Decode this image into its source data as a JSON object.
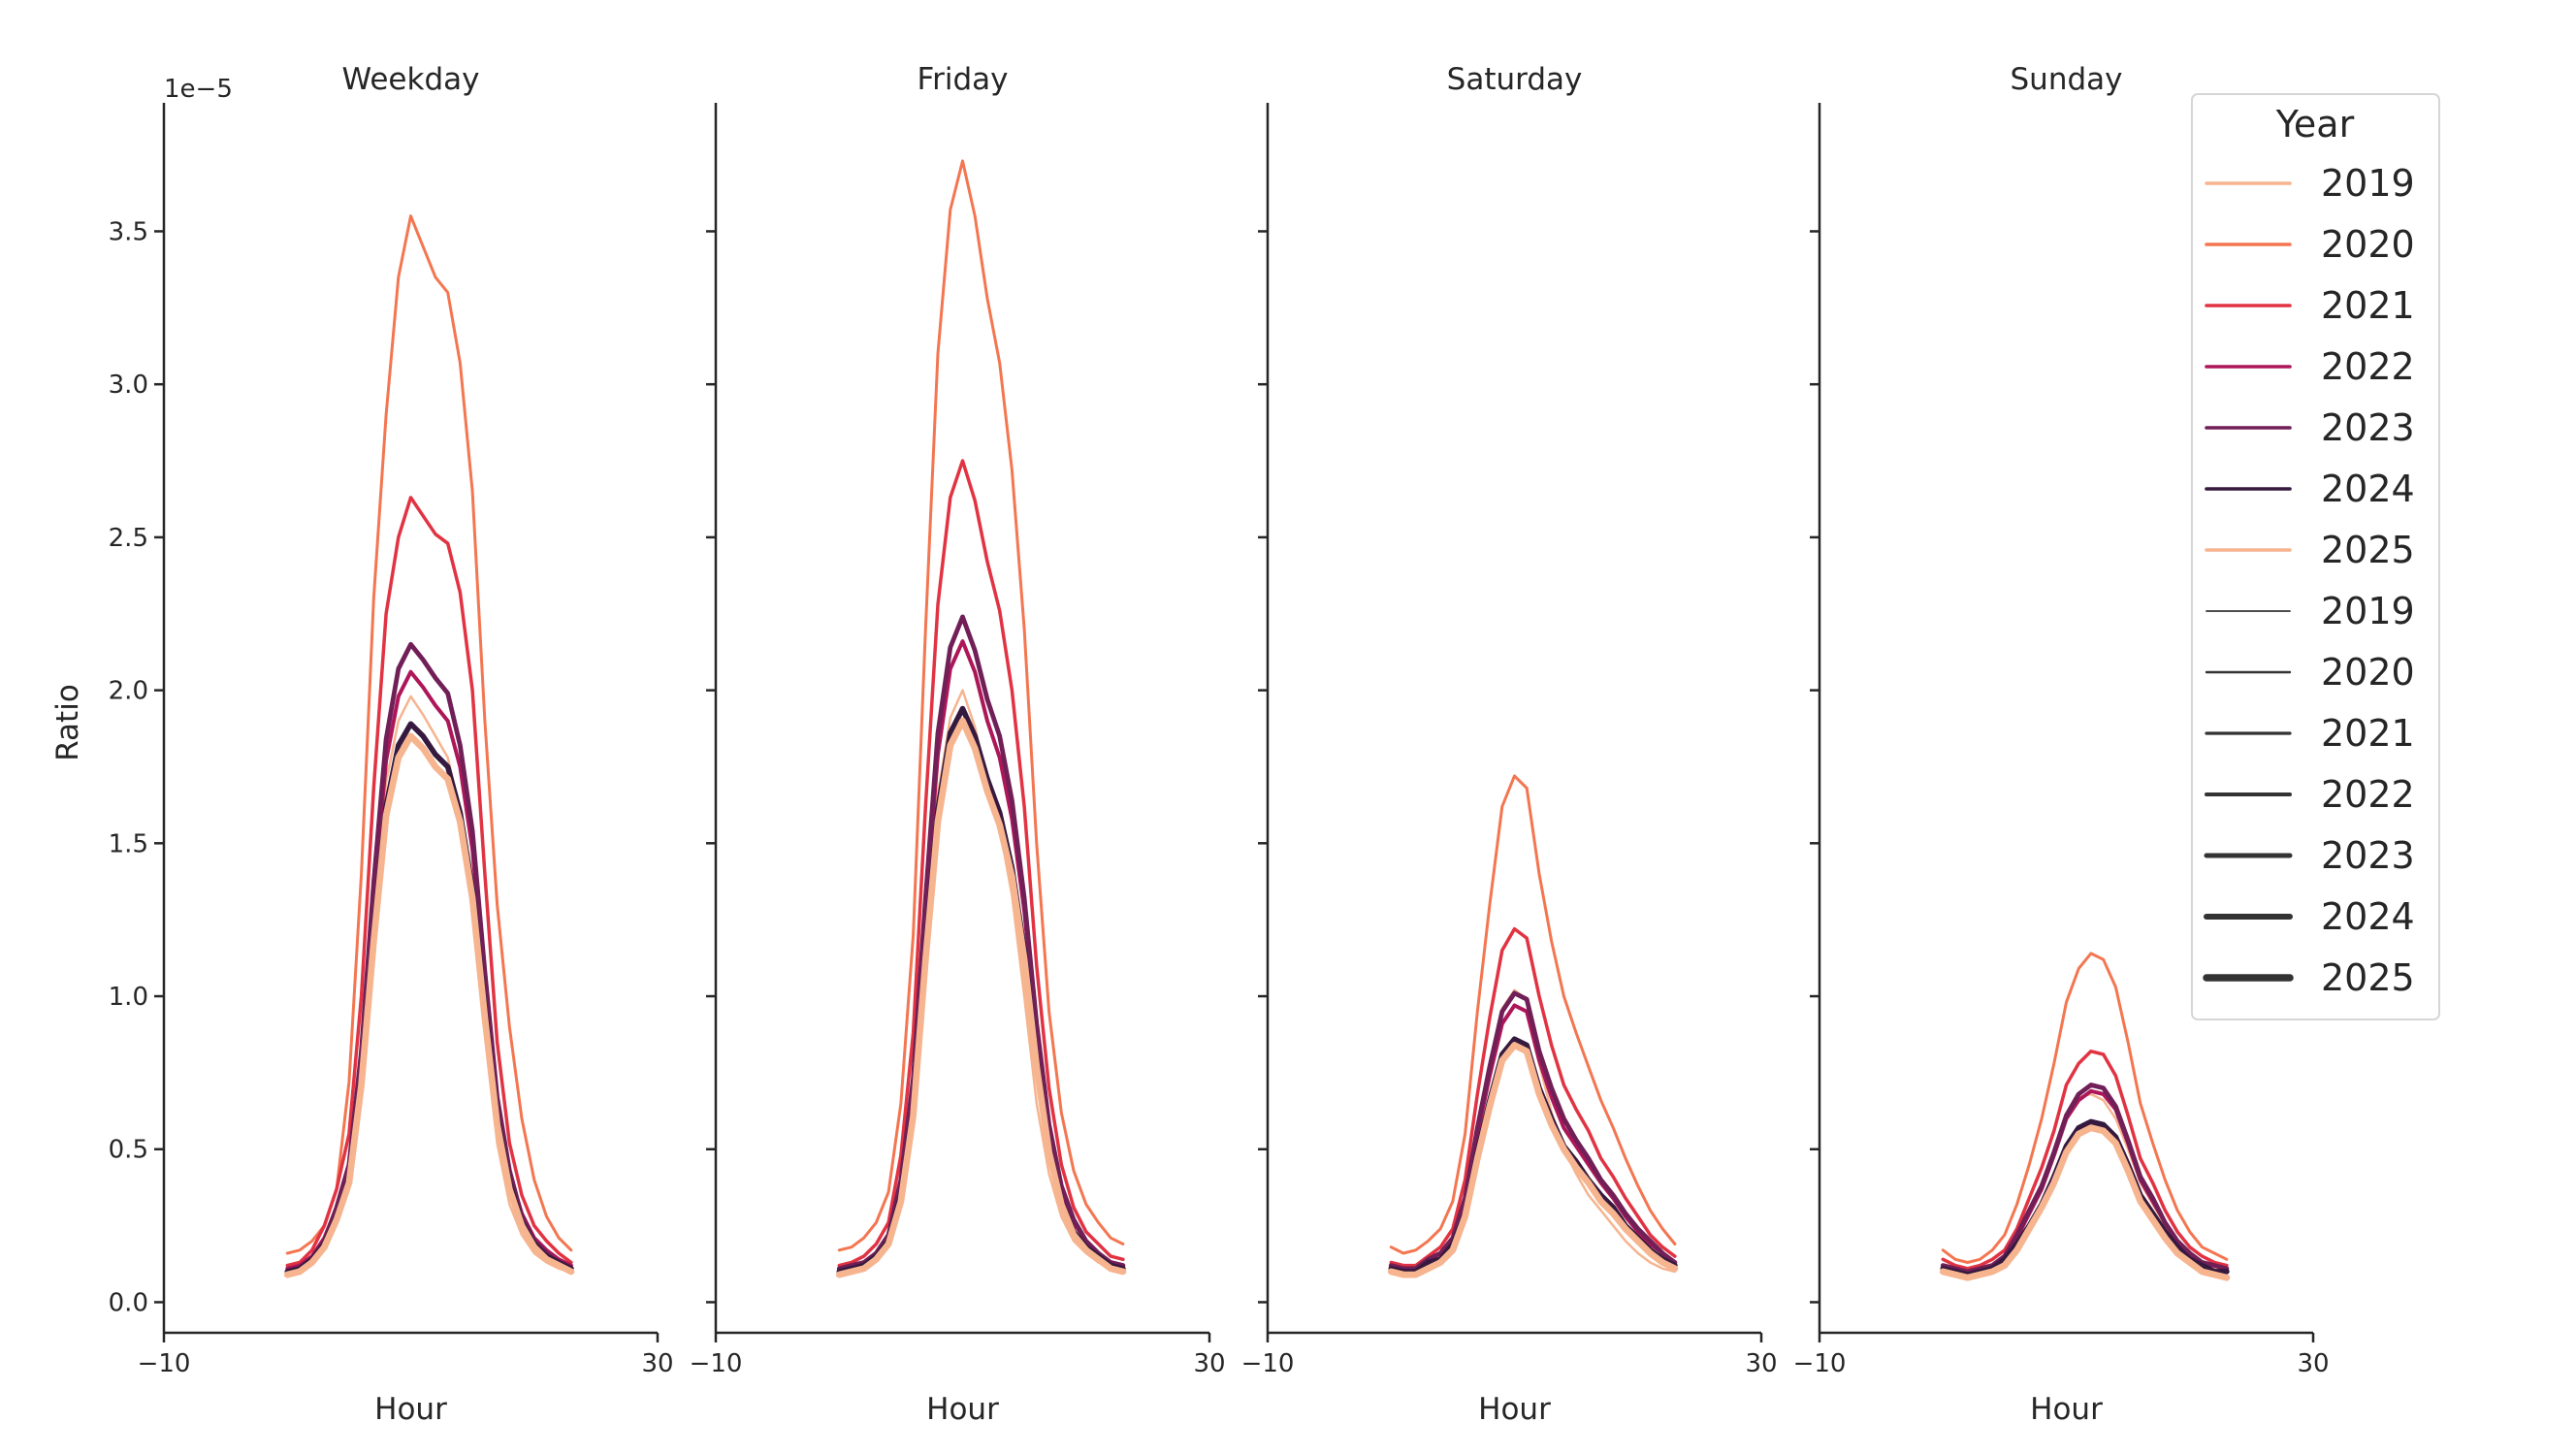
{
  "chart_data": [
    {
      "type": "line",
      "facet": "Weekday",
      "title": "Weekday",
      "xlabel": "Hour",
      "ylabel": "Ratio",
      "x": [
        0,
        1,
        2,
        3,
        4,
        5,
        6,
        7,
        8,
        9,
        10,
        11,
        12,
        13,
        14,
        15,
        16,
        17,
        18,
        19,
        20,
        21,
        22,
        23
      ],
      "series": [
        {
          "name": "2019",
          "values": [
            0.09,
            0.1,
            0.13,
            0.18,
            0.28,
            0.41,
            0.75,
            1.26,
            1.7,
            1.9,
            1.98,
            1.92,
            1.85,
            1.78,
            1.6,
            1.3,
            0.88,
            0.52,
            0.32,
            0.22,
            0.16,
            0.13,
            0.11,
            0.1
          ]
        },
        {
          "name": "2020",
          "values": [
            0.16,
            0.17,
            0.2,
            0.25,
            0.37,
            0.72,
            1.4,
            2.3,
            2.9,
            3.35,
            3.55,
            3.45,
            3.35,
            3.3,
            3.07,
            2.65,
            1.9,
            1.3,
            0.9,
            0.6,
            0.4,
            0.28,
            0.21,
            0.17
          ]
        },
        {
          "name": "2021",
          "values": [
            0.12,
            0.13,
            0.17,
            0.25,
            0.37,
            0.55,
            1.0,
            1.68,
            2.25,
            2.5,
            2.63,
            2.57,
            2.51,
            2.48,
            2.32,
            2.0,
            1.4,
            0.85,
            0.52,
            0.35,
            0.25,
            0.2,
            0.16,
            0.13
          ]
        },
        {
          "name": "2022",
          "values": [
            0.11,
            0.12,
            0.15,
            0.21,
            0.31,
            0.44,
            0.79,
            1.32,
            1.77,
            1.98,
            2.06,
            2.01,
            1.95,
            1.9,
            1.75,
            1.48,
            1.05,
            0.66,
            0.42,
            0.29,
            0.21,
            0.17,
            0.14,
            0.12
          ]
        },
        {
          "name": "2023",
          "values": [
            0.1,
            0.11,
            0.14,
            0.2,
            0.31,
            0.45,
            0.82,
            1.37,
            1.84,
            2.07,
            2.15,
            2.1,
            2.04,
            1.99,
            1.82,
            1.54,
            1.08,
            0.67,
            0.43,
            0.28,
            0.2,
            0.16,
            0.13,
            0.11
          ]
        },
        {
          "name": "2024",
          "values": [
            0.1,
            0.11,
            0.14,
            0.19,
            0.28,
            0.4,
            0.73,
            1.21,
            1.62,
            1.82,
            1.89,
            1.85,
            1.79,
            1.75,
            1.6,
            1.35,
            0.96,
            0.6,
            0.39,
            0.26,
            0.19,
            0.15,
            0.13,
            0.11
          ]
        },
        {
          "name": "2025",
          "values": [
            0.09,
            0.1,
            0.13,
            0.18,
            0.27,
            0.39,
            0.71,
            1.18,
            1.59,
            1.78,
            1.85,
            1.81,
            1.75,
            1.71,
            1.57,
            1.32,
            0.93,
            0.58,
            0.37,
            0.25,
            0.18,
            0.14,
            0.12,
            0.1
          ]
        }
      ]
    },
    {
      "type": "line",
      "facet": "Friday",
      "title": "Friday",
      "xlabel": "Hour",
      "x": [
        0,
        1,
        2,
        3,
        4,
        5,
        6,
        7,
        8,
        9,
        10,
        11,
        12,
        13,
        14,
        15,
        16,
        17,
        18,
        19,
        20,
        21,
        22,
        23
      ],
      "series": [
        {
          "name": "2019",
          "values": [
            0.1,
            0.11,
            0.12,
            0.15,
            0.2,
            0.36,
            0.65,
            1.18,
            1.66,
            1.91,
            2.0,
            1.88,
            1.7,
            1.55,
            1.33,
            1.0,
            0.65,
            0.42,
            0.28,
            0.2,
            0.16,
            0.13,
            0.11,
            0.1
          ]
        },
        {
          "name": "2020",
          "values": [
            0.17,
            0.18,
            0.21,
            0.26,
            0.36,
            0.65,
            1.2,
            2.2,
            3.1,
            3.57,
            3.73,
            3.55,
            3.28,
            3.07,
            2.72,
            2.2,
            1.5,
            0.95,
            0.62,
            0.43,
            0.32,
            0.26,
            0.21,
            0.19
          ]
        },
        {
          "name": "2021",
          "values": [
            0.12,
            0.13,
            0.15,
            0.19,
            0.26,
            0.48,
            0.88,
            1.62,
            2.28,
            2.63,
            2.75,
            2.62,
            2.42,
            2.26,
            2.0,
            1.62,
            1.1,
            0.7,
            0.45,
            0.31,
            0.23,
            0.19,
            0.15,
            0.14
          ]
        },
        {
          "name": "2022",
          "values": [
            0.11,
            0.12,
            0.13,
            0.16,
            0.22,
            0.39,
            0.7,
            1.28,
            1.79,
            2.07,
            2.16,
            2.06,
            1.9,
            1.78,
            1.58,
            1.28,
            0.88,
            0.56,
            0.37,
            0.26,
            0.2,
            0.16,
            0.13,
            0.12
          ]
        },
        {
          "name": "2023",
          "values": [
            0.11,
            0.12,
            0.13,
            0.16,
            0.22,
            0.4,
            0.73,
            1.32,
            1.86,
            2.14,
            2.24,
            2.13,
            1.97,
            1.85,
            1.64,
            1.32,
            0.91,
            0.58,
            0.38,
            0.27,
            0.2,
            0.16,
            0.13,
            0.12
          ]
        },
        {
          "name": "2024",
          "values": [
            0.1,
            0.11,
            0.12,
            0.15,
            0.2,
            0.35,
            0.63,
            1.15,
            1.61,
            1.86,
            1.94,
            1.85,
            1.71,
            1.6,
            1.42,
            1.15,
            0.79,
            0.5,
            0.33,
            0.23,
            0.18,
            0.15,
            0.12,
            0.11
          ]
        },
        {
          "name": "2025",
          "values": [
            0.09,
            0.1,
            0.11,
            0.14,
            0.19,
            0.33,
            0.61,
            1.12,
            1.57,
            1.82,
            1.9,
            1.81,
            1.67,
            1.56,
            1.39,
            1.12,
            0.77,
            0.49,
            0.32,
            0.22,
            0.17,
            0.14,
            0.11,
            0.1
          ]
        }
      ]
    },
    {
      "type": "line",
      "facet": "Saturday",
      "title": "Saturday",
      "xlabel": "Hour",
      "x": [
        0,
        1,
        2,
        3,
        4,
        5,
        6,
        7,
        8,
        9,
        10,
        11,
        12,
        13,
        14,
        15,
        16,
        17,
        18,
        19,
        20,
        21,
        22,
        23
      ],
      "series": [
        {
          "name": "2019",
          "values": [
            0.11,
            0.1,
            0.1,
            0.12,
            0.15,
            0.2,
            0.33,
            0.56,
            0.77,
            0.96,
            1.02,
            0.99,
            0.78,
            0.62,
            0.5,
            0.42,
            0.35,
            0.3,
            0.25,
            0.2,
            0.16,
            0.13,
            0.11,
            0.1
          ]
        },
        {
          "name": "2020",
          "values": [
            0.18,
            0.16,
            0.17,
            0.2,
            0.24,
            0.33,
            0.55,
            0.95,
            1.3,
            1.62,
            1.72,
            1.68,
            1.4,
            1.18,
            1.0,
            0.88,
            0.77,
            0.66,
            0.57,
            0.47,
            0.38,
            0.3,
            0.24,
            0.19
          ]
        },
        {
          "name": "2021",
          "values": [
            0.13,
            0.12,
            0.12,
            0.15,
            0.18,
            0.24,
            0.4,
            0.68,
            0.93,
            1.15,
            1.22,
            1.19,
            1.0,
            0.84,
            0.71,
            0.63,
            0.56,
            0.47,
            0.41,
            0.34,
            0.28,
            0.22,
            0.18,
            0.15
          ]
        },
        {
          "name": "2022",
          "values": [
            0.12,
            0.11,
            0.11,
            0.14,
            0.16,
            0.21,
            0.33,
            0.55,
            0.74,
            0.91,
            0.97,
            0.95,
            0.79,
            0.67,
            0.57,
            0.51,
            0.45,
            0.39,
            0.34,
            0.28,
            0.23,
            0.19,
            0.16,
            0.13
          ]
        },
        {
          "name": "2023",
          "values": [
            0.12,
            0.11,
            0.11,
            0.14,
            0.16,
            0.21,
            0.34,
            0.57,
            0.77,
            0.95,
            1.01,
            0.99,
            0.82,
            0.7,
            0.6,
            0.53,
            0.47,
            0.4,
            0.35,
            0.29,
            0.24,
            0.2,
            0.16,
            0.13
          ]
        },
        {
          "name": "2024",
          "values": [
            0.11,
            0.1,
            0.1,
            0.13,
            0.14,
            0.19,
            0.29,
            0.49,
            0.66,
            0.81,
            0.86,
            0.84,
            0.7,
            0.6,
            0.51,
            0.46,
            0.4,
            0.35,
            0.31,
            0.25,
            0.21,
            0.17,
            0.14,
            0.12
          ]
        },
        {
          "name": "2025",
          "values": [
            0.1,
            0.09,
            0.09,
            0.11,
            0.13,
            0.17,
            0.28,
            0.47,
            0.64,
            0.79,
            0.84,
            0.82,
            0.68,
            0.58,
            0.5,
            0.44,
            0.39,
            0.33,
            0.29,
            0.24,
            0.2,
            0.16,
            0.13,
            0.11
          ]
        }
      ]
    },
    {
      "type": "line",
      "facet": "Sunday",
      "title": "Sunday",
      "xlabel": "Hour",
      "x": [
        0,
        1,
        2,
        3,
        4,
        5,
        6,
        7,
        8,
        9,
        10,
        11,
        12,
        13,
        14,
        15,
        16,
        17,
        18,
        19,
        20,
        21,
        22,
        23
      ],
      "series": [
        {
          "name": "2019",
          "values": [
            0.12,
            0.11,
            0.1,
            0.11,
            0.12,
            0.15,
            0.21,
            0.29,
            0.37,
            0.48,
            0.6,
            0.67,
            0.68,
            0.66,
            0.6,
            0.5,
            0.39,
            0.32,
            0.25,
            0.19,
            0.15,
            0.13,
            0.11,
            0.1
          ]
        },
        {
          "name": "2020",
          "values": [
            0.17,
            0.14,
            0.13,
            0.14,
            0.17,
            0.22,
            0.32,
            0.45,
            0.6,
            0.78,
            0.98,
            1.09,
            1.14,
            1.12,
            1.03,
            0.85,
            0.65,
            0.52,
            0.4,
            0.3,
            0.23,
            0.18,
            0.16,
            0.14
          ]
        },
        {
          "name": "2021",
          "values": [
            0.14,
            0.12,
            0.11,
            0.12,
            0.14,
            0.17,
            0.24,
            0.34,
            0.44,
            0.56,
            0.71,
            0.78,
            0.82,
            0.81,
            0.74,
            0.61,
            0.47,
            0.39,
            0.3,
            0.23,
            0.18,
            0.15,
            0.13,
            0.12
          ]
        },
        {
          "name": "2022",
          "values": [
            0.12,
            0.11,
            0.1,
            0.11,
            0.12,
            0.15,
            0.21,
            0.29,
            0.37,
            0.48,
            0.6,
            0.66,
            0.69,
            0.68,
            0.63,
            0.52,
            0.4,
            0.33,
            0.26,
            0.2,
            0.16,
            0.13,
            0.12,
            0.11
          ]
        },
        {
          "name": "2023",
          "values": [
            0.12,
            0.11,
            0.1,
            0.11,
            0.12,
            0.15,
            0.22,
            0.3,
            0.38,
            0.49,
            0.61,
            0.68,
            0.71,
            0.7,
            0.64,
            0.53,
            0.41,
            0.34,
            0.26,
            0.2,
            0.16,
            0.13,
            0.12,
            0.11
          ]
        },
        {
          "name": "2024",
          "values": [
            0.11,
            0.1,
            0.09,
            0.1,
            0.11,
            0.14,
            0.19,
            0.25,
            0.32,
            0.41,
            0.51,
            0.57,
            0.59,
            0.58,
            0.54,
            0.45,
            0.35,
            0.29,
            0.23,
            0.18,
            0.14,
            0.12,
            0.1,
            0.1
          ]
        },
        {
          "name": "2025",
          "values": [
            0.1,
            0.09,
            0.08,
            0.09,
            0.1,
            0.12,
            0.17,
            0.24,
            0.31,
            0.39,
            0.49,
            0.55,
            0.57,
            0.56,
            0.52,
            0.43,
            0.33,
            0.27,
            0.21,
            0.16,
            0.13,
            0.1,
            0.09,
            0.08
          ]
        }
      ]
    }
  ],
  "axes": {
    "xlim": [
      -10,
      30
    ],
    "xticks": [
      -10,
      30
    ],
    "xtick_labels": [
      "−10",
      "30"
    ],
    "ylim": [
      -0.1,
      3.92
    ],
    "yticks": [
      0,
      0.5,
      1.0,
      1.5,
      2.0,
      2.5,
      3.0,
      3.5
    ],
    "ytick_labels": [
      "0.0",
      "0.5",
      "1.0",
      "1.5",
      "2.0",
      "2.5",
      "3.0",
      "3.5"
    ],
    "y_offset_text": "1e−5",
    "grid": false,
    "shared_y": true
  },
  "legend": {
    "title": "Year",
    "placement": "right",
    "hue_entries": [
      "2019",
      "2020",
      "2021",
      "2022",
      "2023",
      "2024",
      "2025"
    ],
    "size_entries": [
      "2019",
      "2020",
      "2021",
      "2022",
      "2023",
      "2024",
      "2025"
    ]
  },
  "colors": {
    "2019": "#f6b48f",
    "2020": "#f37651",
    "2021": "#e13342",
    "2022": "#ad1759",
    "2023": "#701f57",
    "2024": "#35193e",
    "2025": "#f6b48f",
    "size_legend": "#333333"
  }
}
